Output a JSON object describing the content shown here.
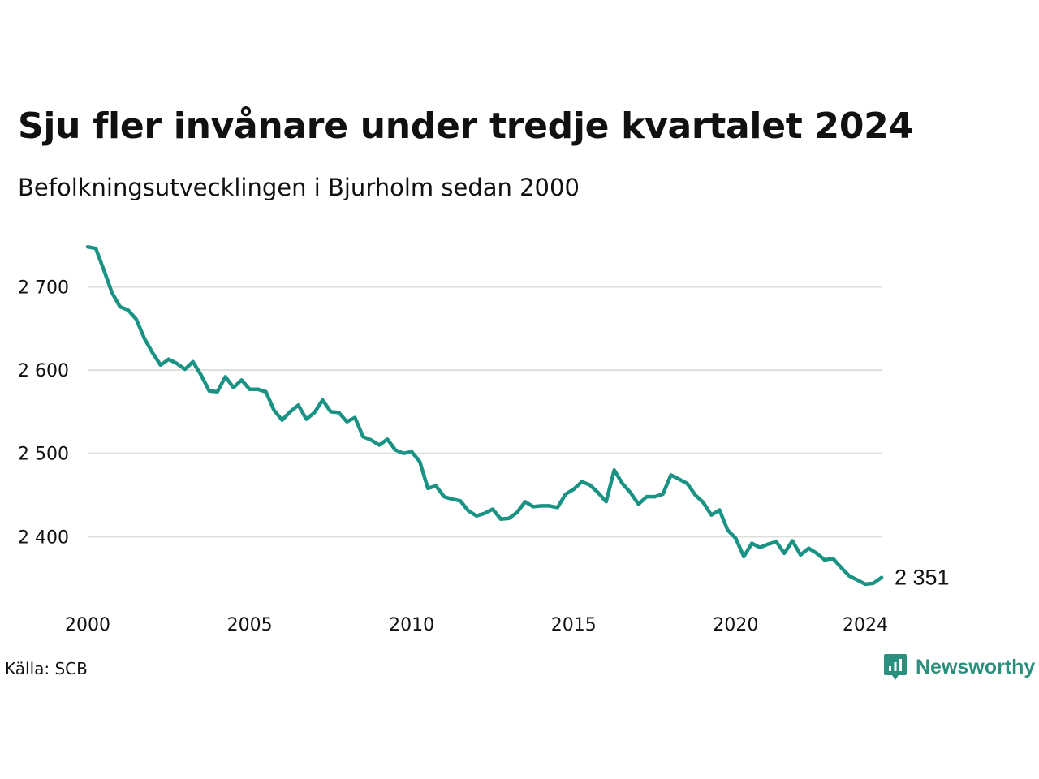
{
  "title": "Sju fler invånare under tredje kvartalet 2024",
  "subtitle": "Befolkningsutvecklingen i Bjurholm sedan 2000",
  "source": "Källa: SCB",
  "brand": "Newsworthy",
  "colors": {
    "line": "#1a9384",
    "grid": "#dddddd",
    "brand": "#2b8f7e"
  },
  "chart_data": {
    "type": "line",
    "title": "Sju fler invånare under tredje kvartalet 2024",
    "subtitle": "Befolkningsutvecklingen i Bjurholm sedan 2000",
    "xlabel": "",
    "ylabel": "",
    "x_ticks": [
      2000,
      2005,
      2010,
      2015,
      2020,
      2024
    ],
    "x_tick_labels": [
      "2000",
      "2005",
      "2010",
      "2015",
      "2020",
      "2024"
    ],
    "y_ticks": [
      2400,
      2500,
      2600,
      2700
    ],
    "y_tick_labels": [
      "2 400",
      "2 500",
      "2 600",
      "2 700"
    ],
    "xlim": [
      2000.0,
      2024.5
    ],
    "ylim": [
      2338,
      2755
    ],
    "grid": "horizontal",
    "end_label": "2 351",
    "series": [
      {
        "x": [
          2000.0,
          2000.25,
          2000.5,
          2000.75,
          2001.0,
          2001.25,
          2001.5,
          2001.75,
          2002.0,
          2002.25,
          2002.5,
          2002.75,
          2003.0,
          2003.25,
          2003.5,
          2003.75,
          2004.0,
          2004.25,
          2004.5,
          2004.75,
          2005.0,
          2005.25,
          2005.5,
          2005.75,
          2006.0,
          2006.25,
          2006.5,
          2006.75,
          2007.0,
          2007.25,
          2007.5,
          2007.75,
          2008.0,
          2008.25,
          2008.5,
          2008.75,
          2009.0,
          2009.25,
          2009.5,
          2009.75,
          2010.0,
          2010.25,
          2010.5,
          2010.75,
          2011.0,
          2011.25,
          2011.5,
          2011.75,
          2012.0,
          2012.25,
          2012.5,
          2012.75,
          2013.0,
          2013.25,
          2013.5,
          2013.75,
          2014.0,
          2014.25,
          2014.5,
          2014.75,
          2015.0,
          2015.25,
          2015.5,
          2015.75,
          2016.0,
          2016.25,
          2016.5,
          2016.75,
          2017.0,
          2017.25,
          2017.5,
          2017.75,
          2018.0,
          2018.25,
          2018.5,
          2018.75,
          2019.0,
          2019.25,
          2019.5,
          2019.75,
          2020.0,
          2020.25,
          2020.5,
          2020.75,
          2021.0,
          2021.25,
          2021.5,
          2021.75,
          2022.0,
          2022.25,
          2022.5,
          2022.75,
          2023.0,
          2023.25,
          2023.5,
          2023.75,
          2024.0,
          2024.25,
          2024.5
        ],
        "values": [
          2748,
          2746,
          2720,
          2693,
          2676,
          2672,
          2661,
          2638,
          2621,
          2606,
          2613,
          2608,
          2601,
          2610,
          2594,
          2575,
          2574,
          2592,
          2579,
          2588,
          2577,
          2577,
          2574,
          2552,
          2540,
          2550,
          2558,
          2541,
          2549,
          2564,
          2550,
          2549,
          2538,
          2543,
          2520,
          2516,
          2510,
          2517,
          2504,
          2500,
          2502,
          2490,
          2458,
          2461,
          2448,
          2445,
          2443,
          2431,
          2425,
          2428,
          2433,
          2421,
          2422,
          2429,
          2442,
          2436,
          2437,
          2437,
          2435,
          2451,
          2457,
          2466,
          2462,
          2453,
          2442,
          2480,
          2464,
          2453,
          2439,
          2448,
          2448,
          2451,
          2474,
          2469,
          2464,
          2450,
          2441,
          2426,
          2432,
          2408,
          2398,
          2376,
          2392,
          2387,
          2391,
          2394,
          2380,
          2395,
          2378,
          2386,
          2380,
          2372,
          2374,
          2363,
          2353,
          2348,
          2343,
          2344,
          2351
        ]
      }
    ]
  }
}
